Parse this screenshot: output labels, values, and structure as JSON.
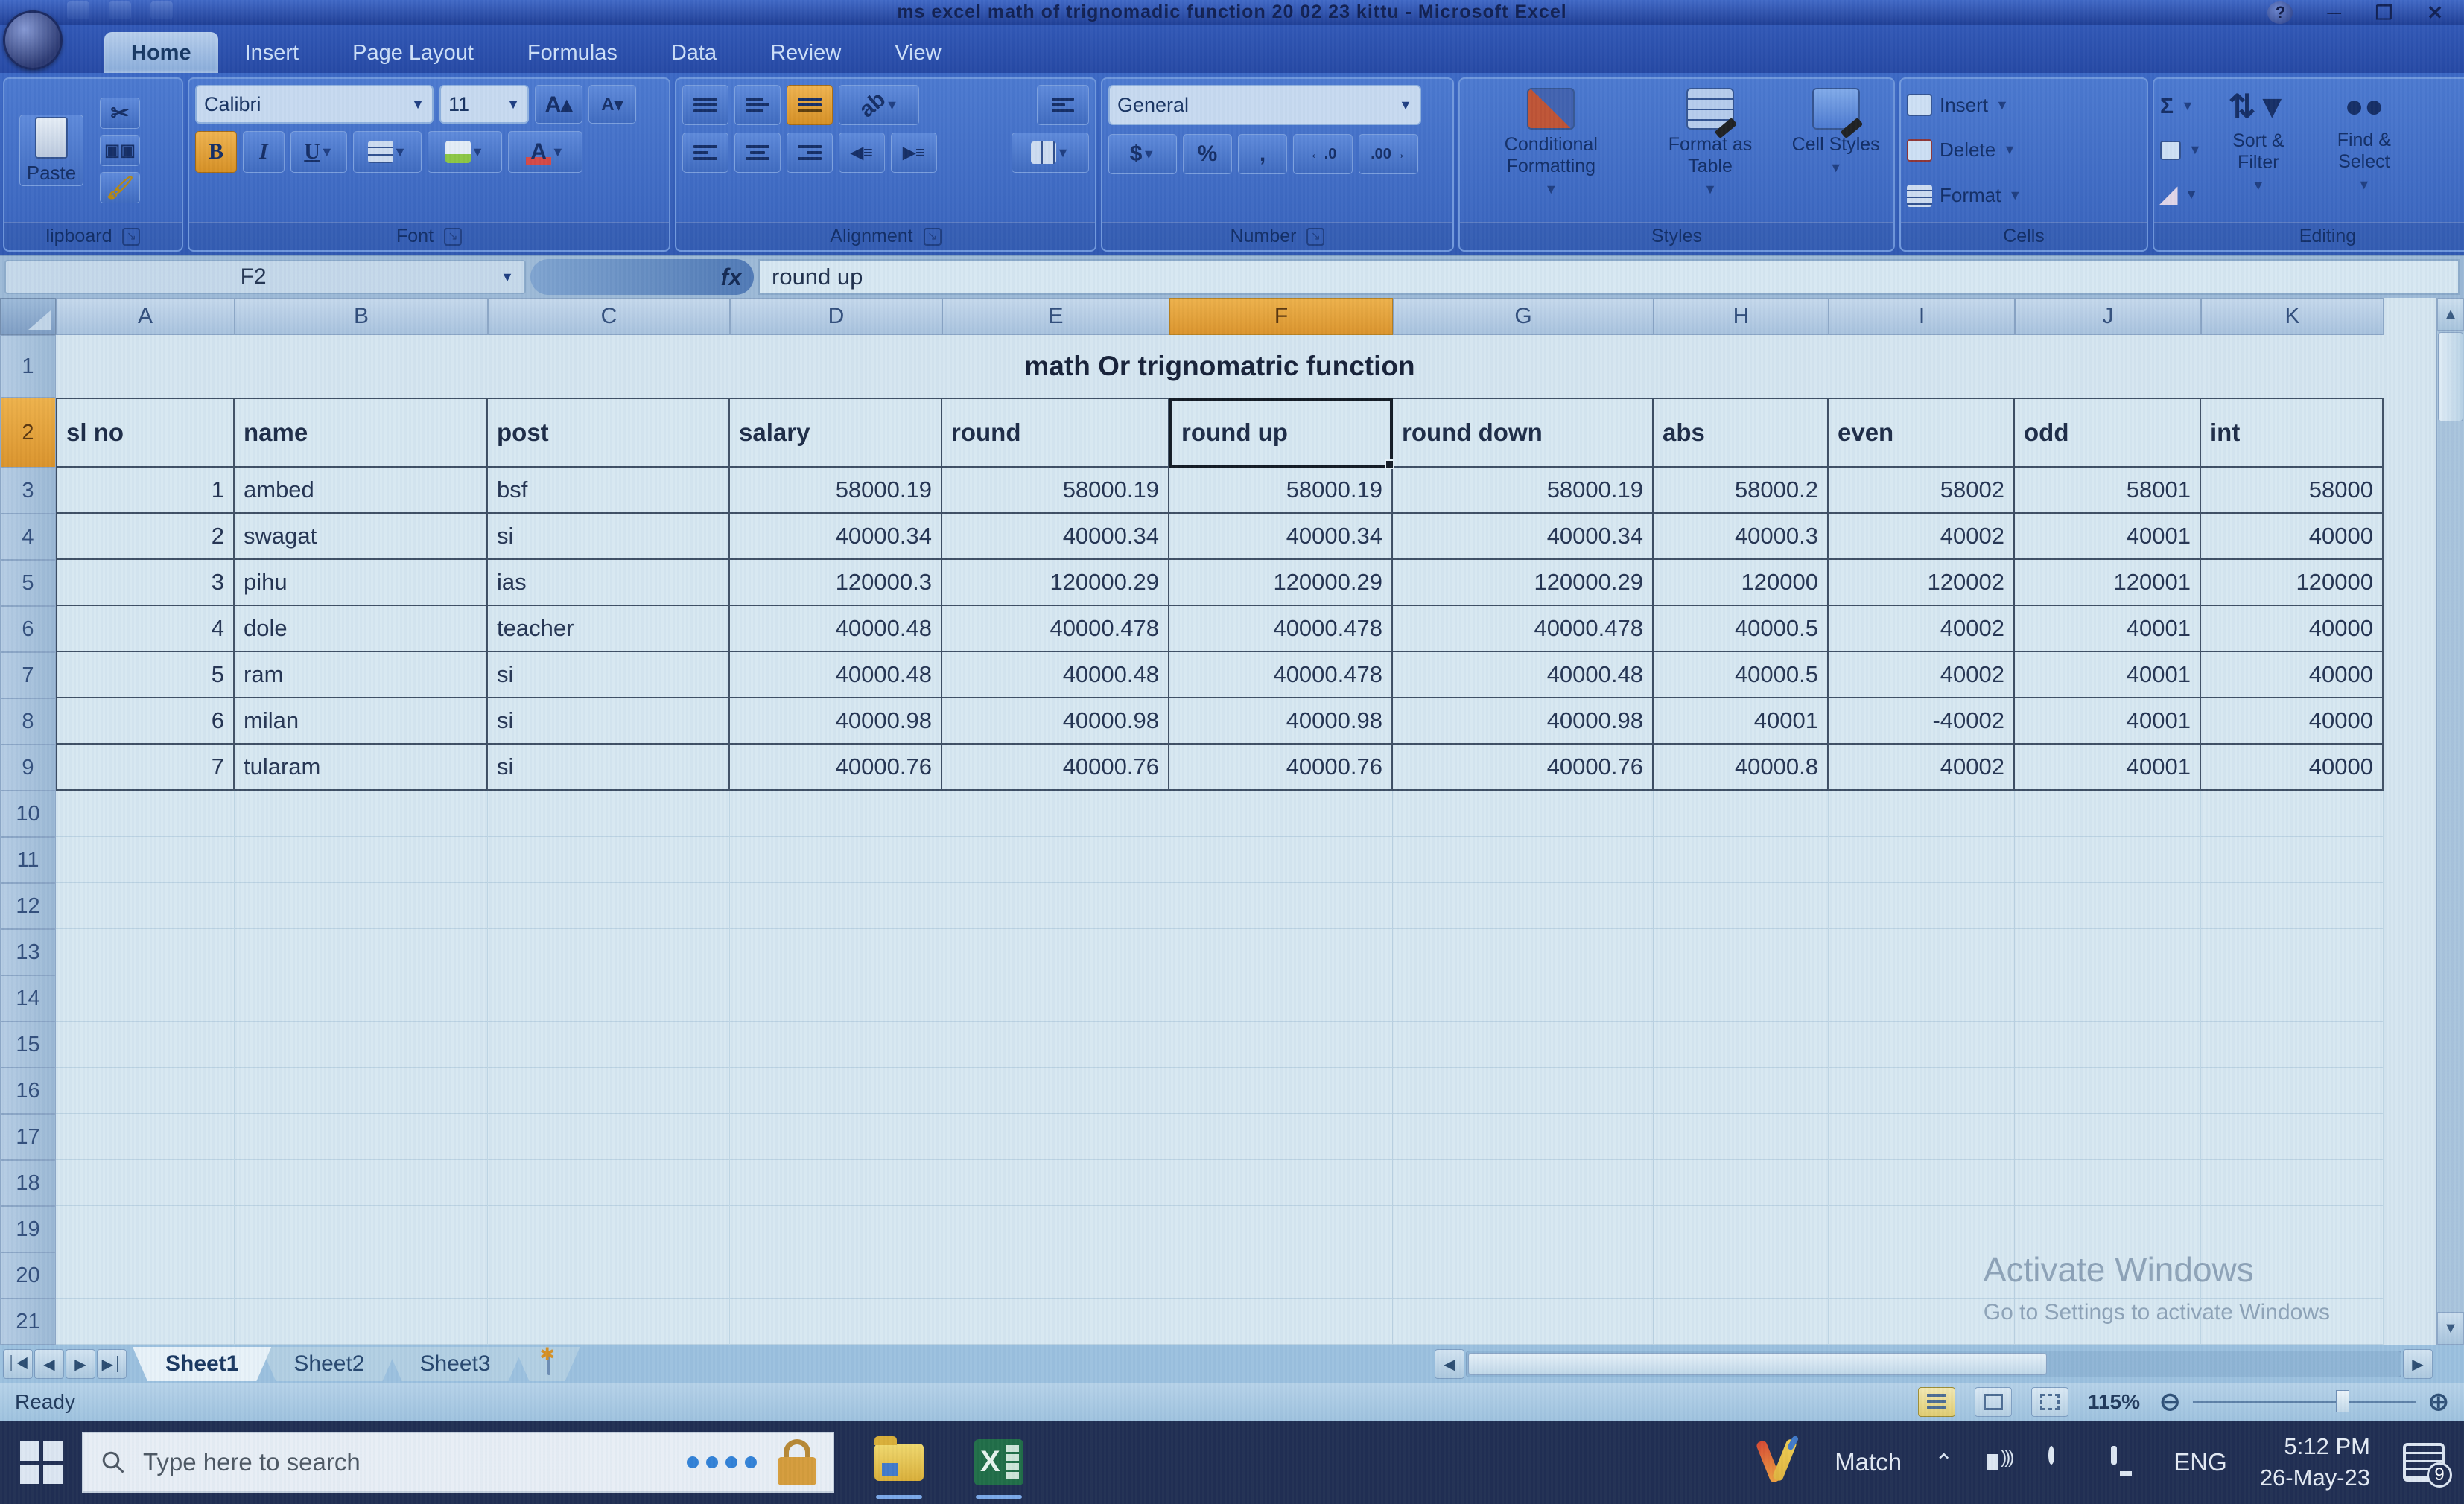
{
  "title_bar": {
    "title": "ms excel math of trignomadic function 20 02 23 kittu - Microsoft Excel",
    "help": "?"
  },
  "ribbon": {
    "tabs": [
      {
        "label": "Home",
        "active": true
      },
      {
        "label": "Insert",
        "active": false
      },
      {
        "label": "Page Layout",
        "active": false
      },
      {
        "label": "Formulas",
        "active": false
      },
      {
        "label": "Data",
        "active": false
      },
      {
        "label": "Review",
        "active": false
      },
      {
        "label": "View",
        "active": false
      }
    ],
    "clipboard": {
      "label": "lipboard",
      "paste_label": "Paste"
    },
    "font": {
      "label": "Font",
      "font_name": "Calibri",
      "font_size": "11"
    },
    "alignment": {
      "label": "Alignment"
    },
    "number": {
      "label": "Number",
      "format_value": "General"
    },
    "styles": {
      "label": "Styles",
      "conditional": "Conditional Formatting",
      "format_table": "Format as Table",
      "cell_styles": "Cell Styles"
    },
    "cells": {
      "label": "Cells",
      "insert": "Insert",
      "delete": "Delete",
      "format": "Format"
    },
    "editing": {
      "label": "Editing",
      "sort_filter": "Sort & Filter",
      "find_select": "Find & Select"
    }
  },
  "formula_bar": {
    "name_box": "F2",
    "formula": "round up"
  },
  "grid": {
    "column_letters": [
      "A",
      "B",
      "C",
      "D",
      "E",
      "F",
      "G",
      "H",
      "I",
      "J",
      "K"
    ],
    "selected_column": "F",
    "row_count": 21,
    "selected_row": 2,
    "title_row": {
      "row": 1,
      "text": "math Or trignomatric function"
    },
    "header_row": {
      "row": 2,
      "cells": [
        "sl no",
        "name",
        "post",
        "salary",
        "round",
        "round up",
        "round down",
        "abs",
        "even",
        "odd",
        "int"
      ]
    },
    "selected_cell": {
      "ref": "F2",
      "value": "round up"
    },
    "data_rows": [
      {
        "row": 3,
        "cells": [
          "1",
          "ambed",
          "bsf",
          "58000.19",
          "58000.19",
          "58000.19",
          "58000.19",
          "58000.2",
          "58002",
          "58001",
          "58000"
        ]
      },
      {
        "row": 4,
        "cells": [
          "2",
          "swagat",
          "si",
          "40000.34",
          "40000.34",
          "40000.34",
          "40000.34",
          "40000.3",
          "40002",
          "40001",
          "40000"
        ]
      },
      {
        "row": 5,
        "cells": [
          "3",
          "pihu",
          "ias",
          "120000.3",
          "120000.29",
          "120000.29",
          "120000.29",
          "120000",
          "120002",
          "120001",
          "120000"
        ]
      },
      {
        "row": 6,
        "cells": [
          "4",
          "dole",
          "teacher",
          "40000.48",
          "40000.478",
          "40000.478",
          "40000.478",
          "40000.5",
          "40002",
          "40001",
          "40000"
        ]
      },
      {
        "row": 7,
        "cells": [
          "5",
          "ram",
          "si",
          "40000.48",
          "40000.48",
          "40000.478",
          "40000.48",
          "40000.5",
          "40002",
          "40001",
          "40000"
        ]
      },
      {
        "row": 8,
        "cells": [
          "6",
          "milan",
          "si",
          "40000.98",
          "40000.98",
          "40000.98",
          "40000.98",
          "40001",
          "-40002",
          "40001",
          "40000"
        ]
      },
      {
        "row": 9,
        "cells": [
          "7",
          "tularam",
          "si",
          "40000.76",
          "40000.76",
          "40000.76",
          "40000.76",
          "40000.8",
          "40002",
          "40001",
          "40000"
        ]
      }
    ]
  },
  "sheet_bar": {
    "tabs": [
      {
        "label": "Sheet1",
        "active": true
      },
      {
        "label": "Sheet2",
        "active": false
      },
      {
        "label": "Sheet3",
        "active": false
      }
    ]
  },
  "status_bar": {
    "status": "Ready",
    "zoom_level": "115%"
  },
  "watermark": {
    "line1": "Activate Windows",
    "line2": "Go to Settings to activate Windows"
  },
  "taskbar": {
    "search_placeholder": "Type here to search",
    "app_label": "Match",
    "language": "ENG",
    "time": "5:12 PM",
    "date": "26-May-23",
    "notification_count": "9"
  }
}
